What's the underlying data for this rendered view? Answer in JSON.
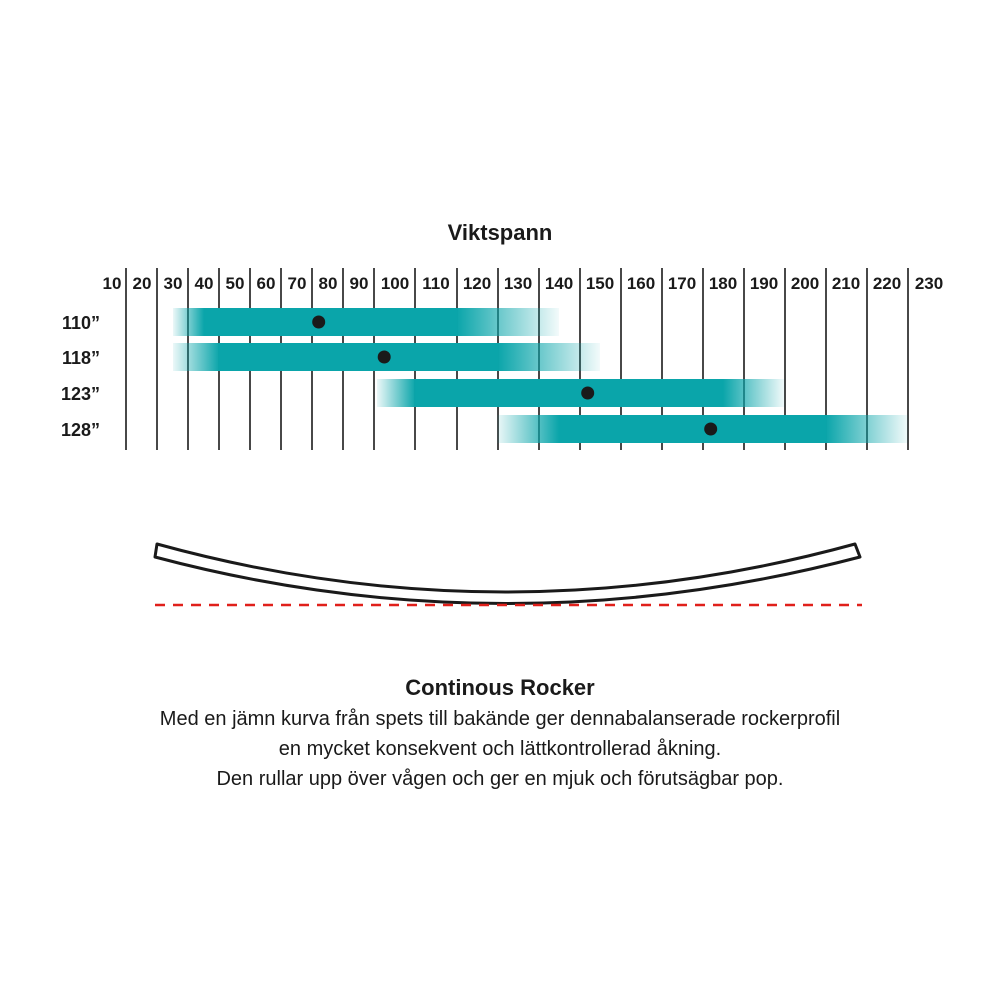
{
  "chart_data": {
    "type": "bar",
    "title": "Viktspann",
    "x_ticks": [
      10,
      20,
      30,
      40,
      50,
      60,
      70,
      80,
      90,
      100,
      110,
      120,
      130,
      140,
      150,
      160,
      170,
      180,
      190,
      200,
      210,
      220,
      230
    ],
    "categories": [
      "110”",
      "118”",
      "123”",
      "128”"
    ],
    "ranges": [
      {
        "label": "110”",
        "min": 30,
        "max": 140,
        "solid_min": 40,
        "solid_max": 115,
        "optimum": 77
      },
      {
        "label": "118”",
        "min": 30,
        "max": 150,
        "solid_min": 45,
        "solid_max": 125,
        "optimum": 97
      },
      {
        "label": "123”",
        "min": 95,
        "max": 195,
        "solid_min": 105,
        "solid_max": 180,
        "optimum": 147
      },
      {
        "label": "128”",
        "min": 125,
        "max": 225,
        "solid_min": 140,
        "solid_max": 205,
        "optimum": 177
      }
    ],
    "bar_color": "#0aa5aa",
    "dot_color": "#1a1a1a",
    "grid": true
  },
  "profile": {
    "name": "Continous Rocker",
    "baseline_color": "#e0201b",
    "description_lines": [
      "Med en jämn kurva från spets till bakände ger dennabalanserade rockerprofil",
      "en mycket konsekvent och lättkontrollerad åkning.",
      "Den rullar upp över vågen och ger en mjuk och förutsägbar pop."
    ]
  }
}
